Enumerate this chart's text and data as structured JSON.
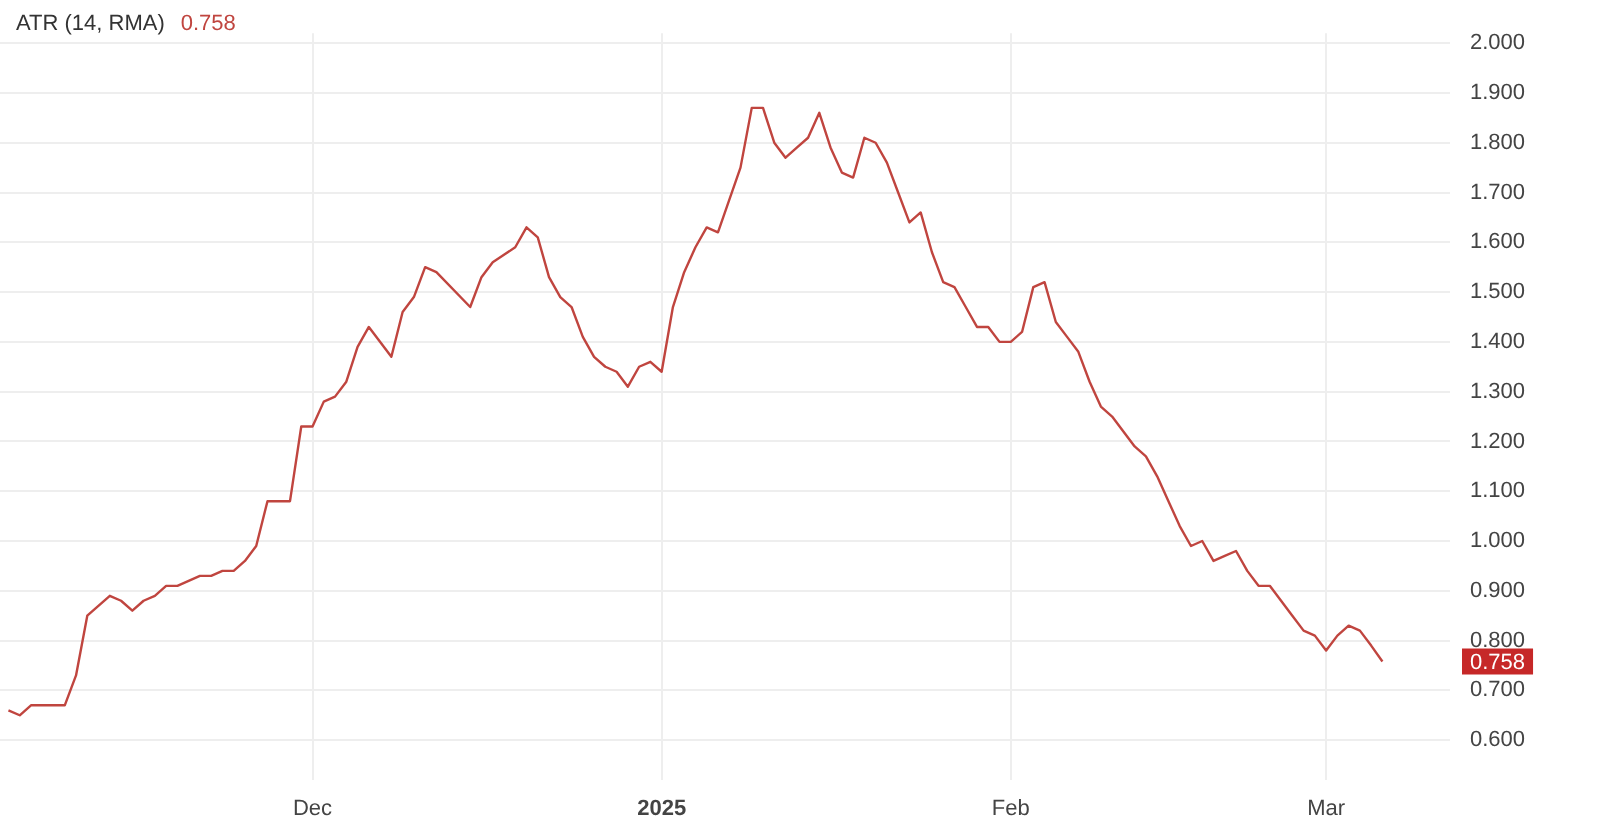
{
  "chart_data": {
    "type": "line",
    "x": [
      "2024-11-04",
      "2024-11-05",
      "2024-11-06",
      "2024-11-07",
      "2024-11-08",
      "2024-11-09",
      "2024-11-10",
      "2024-11-11",
      "2024-11-13",
      "2024-11-14",
      "2024-11-15",
      "2024-11-16",
      "2024-11-17",
      "2024-11-18",
      "2024-11-19",
      "2024-11-21",
      "2024-11-22",
      "2024-11-23",
      "2024-11-24",
      "2024-11-25",
      "2024-11-26",
      "2024-11-27",
      "2024-11-29",
      "2024-11-30",
      "2024-12-01",
      "2024-12-02",
      "2024-12-03",
      "2024-12-04",
      "2024-12-05",
      "2024-12-06",
      "2024-12-08",
      "2024-12-09",
      "2024-12-10",
      "2024-12-11",
      "2024-12-12",
      "2024-12-15",
      "2024-12-16",
      "2024-12-17",
      "2024-12-19",
      "2024-12-20",
      "2024-12-21",
      "2024-12-22",
      "2024-12-23",
      "2024-12-24",
      "2024-12-25",
      "2024-12-26",
      "2024-12-27",
      "2024-12-28",
      "2024-12-29",
      "2024-12-30",
      "2024-12-31",
      "2025-01-01",
      "2025-01-02",
      "2025-01-03",
      "2025-01-04",
      "2025-01-05",
      "2025-01-06",
      "2025-01-08",
      "2025-01-09",
      "2025-01-10",
      "2025-01-11",
      "2025-01-12",
      "2025-01-13",
      "2025-01-14",
      "2025-01-15",
      "2025-01-16",
      "2025-01-17",
      "2025-01-18",
      "2025-01-19",
      "2025-01-20",
      "2025-01-21",
      "2025-01-22",
      "2025-01-23",
      "2025-01-24",
      "2025-01-25",
      "2025-01-26",
      "2025-01-27",
      "2025-01-28",
      "2025-01-29",
      "2025-01-30",
      "2025-01-31",
      "2025-02-01",
      "2025-02-02",
      "2025-02-03",
      "2025-02-04",
      "2025-02-05",
      "2025-02-06",
      "2025-02-07",
      "2025-02-08",
      "2025-02-09",
      "2025-02-10",
      "2025-02-11",
      "2025-02-12",
      "2025-02-13",
      "2025-02-14",
      "2025-02-15",
      "2025-02-16",
      "2025-02-17",
      "2025-02-18",
      "2025-02-19",
      "2025-02-20",
      "2025-02-21",
      "2025-02-22",
      "2025-02-23",
      "2025-02-24",
      "2025-02-25",
      "2025-02-26",
      "2025-02-27",
      "2025-02-28",
      "2025-03-01",
      "2025-03-02",
      "2025-03-03",
      "2025-03-04",
      "2025-03-05",
      "2025-03-06"
    ],
    "series": [
      {
        "name": "ATR (14, RMA)",
        "color": "#c0453f",
        "values": [
          0.66,
          0.65,
          0.67,
          0.67,
          0.67,
          0.67,
          0.73,
          0.85,
          0.89,
          0.88,
          0.86,
          0.88,
          0.89,
          0.91,
          0.91,
          0.93,
          0.93,
          0.94,
          0.94,
          0.96,
          0.99,
          1.08,
          1.08,
          1.23,
          1.23,
          1.28,
          1.29,
          1.32,
          1.39,
          1.43,
          1.37,
          1.46,
          1.49,
          1.55,
          1.54,
          1.47,
          1.53,
          1.56,
          1.59,
          1.63,
          1.61,
          1.53,
          1.49,
          1.47,
          1.41,
          1.37,
          1.35,
          1.34,
          1.31,
          1.35,
          1.36,
          1.34,
          1.47,
          1.54,
          1.59,
          1.63,
          1.62,
          1.75,
          1.87,
          1.87,
          1.8,
          1.77,
          1.79,
          1.81,
          1.86,
          1.79,
          1.74,
          1.73,
          1.81,
          1.8,
          1.76,
          1.7,
          1.64,
          1.66,
          1.58,
          1.52,
          1.51,
          1.47,
          1.43,
          1.43,
          1.4,
          1.4,
          1.42,
          1.51,
          1.52,
          1.44,
          1.41,
          1.38,
          1.32,
          1.27,
          1.25,
          1.22,
          1.19,
          1.17,
          1.13,
          1.08,
          1.03,
          0.99,
          1.0,
          0.96,
          0.97,
          0.98,
          0.94,
          0.91,
          0.91,
          0.88,
          0.85,
          0.82,
          0.81,
          0.78,
          0.81,
          0.83,
          0.82,
          0.79,
          0.758
        ]
      }
    ],
    "xlim": [
      "2024-11-03T06:00",
      "2025-03-12"
    ],
    "xticks": [
      {
        "value": "2024-12-01",
        "label": "Dec"
      },
      {
        "value": "2025-01-01",
        "label": "2025"
      },
      {
        "value": "2025-02-01",
        "label": "Feb"
      },
      {
        "value": "2025-03-01",
        "label": "Mar"
      }
    ],
    "ylim": [
      0.52,
      2.02
    ],
    "yticks": [
      {
        "value": 0.6,
        "label": "0.600"
      },
      {
        "value": 0.7,
        "label": "0.700"
      },
      {
        "value": 0.8,
        "label": "0.800"
      },
      {
        "value": 0.9,
        "label": "0.900"
      },
      {
        "value": 1,
        "label": "1.000"
      },
      {
        "value": 1.1,
        "label": "1.100"
      },
      {
        "value": 1.2,
        "label": "1.200"
      },
      {
        "value": 1.3,
        "label": "1.300"
      },
      {
        "value": 1.4,
        "label": "1.400"
      },
      {
        "value": 1.5,
        "label": "1.500"
      },
      {
        "value": 1.6,
        "label": "1.600"
      },
      {
        "value": 1.7,
        "label": "1.700"
      },
      {
        "value": 1.8,
        "label": "1.800"
      },
      {
        "value": 1.9,
        "label": "1.900"
      },
      {
        "value": 2,
        "label": "2.000"
      }
    ],
    "annotations": [
      "0.758"
    ],
    "grid": true,
    "legend": "top left",
    "marker": "none",
    "line_style": "solid"
  }
}
